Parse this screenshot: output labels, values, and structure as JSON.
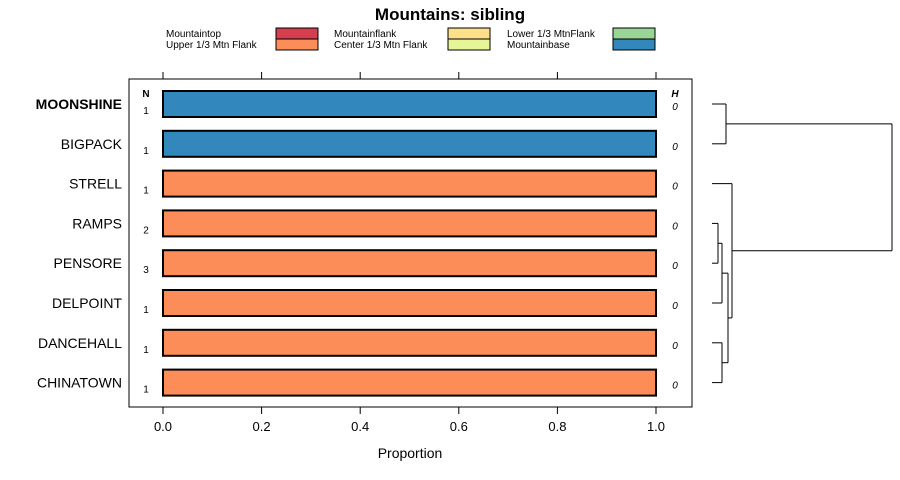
{
  "chart_data": {
    "type": "bar",
    "orientation": "horizontal",
    "title": "Mountains: sibling",
    "xlabel": "Proportion",
    "xlim": [
      0,
      1
    ],
    "xticks": [
      0.0,
      0.2,
      0.4,
      0.6,
      0.8,
      1.0
    ],
    "xtick_labels": [
      "0.0",
      "0.2",
      "0.4",
      "0.6",
      "0.8",
      "1.0"
    ],
    "n_header": "N",
    "h_header": "H",
    "legend_placement": "top",
    "legend": [
      {
        "label": "Mountaintop",
        "color": "#d53e4f"
      },
      {
        "label": "Upper 1/3 Mtn Flank",
        "color": "#fc8d59"
      },
      {
        "label": "Mountainflank",
        "color": "#fee08b"
      },
      {
        "label": "Center 1/3 Mtn Flank",
        "color": "#e6f598"
      },
      {
        "label": "Lower 1/3 MtnFlank",
        "color": "#99d594"
      },
      {
        "label": "Mountainbase",
        "color": "#3288bd"
      }
    ],
    "categories": [
      "MOONSHINE",
      "BIGPACK",
      "STRELL",
      "RAMPS",
      "PENSORE",
      "DELPOINT",
      "DANCEHALL",
      "CHINATOWN"
    ],
    "highlighted": "MOONSHINE",
    "bar_colors": [
      "#3288bd",
      "#3288bd",
      "#fc8d59",
      "#fc8d59",
      "#fc8d59",
      "#fc8d59",
      "#fc8d59",
      "#fc8d59"
    ],
    "values": [
      1.0,
      1.0,
      1.0,
      1.0,
      1.0,
      1.0,
      1.0,
      1.0
    ],
    "n": [
      "1",
      "1",
      "1",
      "2",
      "3",
      "1",
      "1",
      "1"
    ],
    "h": [
      "0",
      "0",
      "0",
      "0",
      "0",
      "0",
      "0",
      "0"
    ],
    "dendrogram": "hierarchical clustering of rows"
  }
}
